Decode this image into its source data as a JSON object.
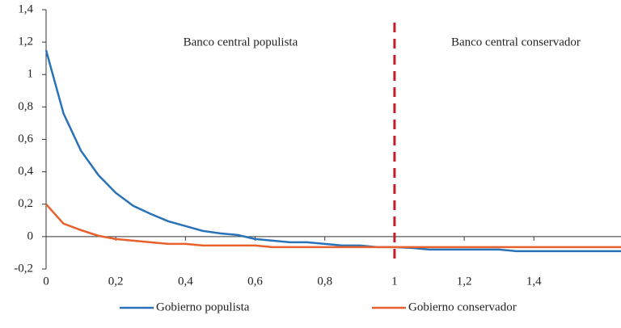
{
  "chart_data": {
    "type": "line",
    "x": [
      0,
      0.05,
      0.1,
      0.15,
      0.2,
      0.25,
      0.3,
      0.35,
      0.4,
      0.45,
      0.5,
      0.55,
      0.6,
      0.65,
      0.7,
      0.75,
      0.8,
      0.85,
      0.9,
      0.95,
      1,
      1.05,
      1.1,
      1.15,
      1.2,
      1.25,
      1.3,
      1.35,
      1.4,
      1.45,
      1.5,
      1.55,
      1.6,
      1.65
    ],
    "series": [
      {
        "name": "Gobierno populista",
        "color": "#2a72b8",
        "values": [
          1.15,
          0.76,
          0.53,
          0.38,
          0.27,
          0.19,
          0.14,
          0.095,
          0.065,
          0.035,
          0.02,
          0.01,
          -0.015,
          -0.025,
          -0.035,
          -0.035,
          -0.045,
          -0.055,
          -0.055,
          -0.065,
          -0.065,
          -0.07,
          -0.08,
          -0.08,
          -0.08,
          -0.08,
          -0.08,
          -0.09,
          -0.09,
          -0.09,
          -0.09,
          -0.09,
          -0.09,
          -0.09
        ]
      },
      {
        "name": "Gobierno conservador",
        "color": "#e8602c",
        "values": [
          0.2,
          0.08,
          0.04,
          0.005,
          -0.015,
          -0.025,
          -0.035,
          -0.045,
          -0.045,
          -0.055,
          -0.055,
          -0.055,
          -0.055,
          -0.065,
          -0.065,
          -0.065,
          -0.065,
          -0.065,
          -0.065,
          -0.065,
          -0.065,
          -0.065,
          -0.065,
          -0.065,
          -0.065,
          -0.065,
          -0.065,
          -0.065,
          -0.065,
          -0.065,
          -0.065,
          -0.065,
          -0.065,
          -0.065
        ]
      }
    ],
    "xlim": [
      0,
      1.65
    ],
    "ylim": [
      -0.2,
      1.4
    ],
    "xticks": [
      0,
      {
        "value": 0.2,
        "label": "0,2"
      },
      {
        "value": 0.4,
        "label": "0,4"
      },
      {
        "value": 0.6,
        "label": "0,6"
      },
      {
        "value": 0.8,
        "label": "0,8"
      },
      1,
      {
        "value": 1.2,
        "label": "1,2"
      },
      {
        "value": 1.4,
        "label": "1,4"
      }
    ],
    "yticks": [
      {
        "value": -0.2,
        "label": "-0,2"
      },
      0,
      {
        "value": 0.2,
        "label": "0,2"
      },
      {
        "value": 0.4,
        "label": "0,4"
      },
      {
        "value": 0.6,
        "label": "0,6"
      },
      {
        "value": 0.8,
        "label": "0,8"
      },
      1,
      {
        "value": 1.2,
        "label": "1,2"
      },
      {
        "value": 1.4,
        "label": "1,4"
      }
    ],
    "vline": {
      "x": 1,
      "color": "#c0202a"
    },
    "annotations": [
      "Banco central populista",
      "Banco central conservador"
    ],
    "legend": "bottom"
  }
}
